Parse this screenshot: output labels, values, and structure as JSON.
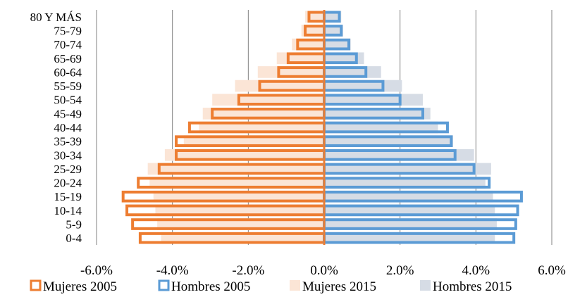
{
  "chart_data": {
    "type": "bar",
    "orientation": "horizontal",
    "layout": "population-pyramid",
    "categories": [
      "0-4",
      "5-9",
      "10-14",
      "15-19",
      "20-24",
      "25-29",
      "30-34",
      "35-39",
      "40-44",
      "45-49",
      "50-54",
      "55-59",
      "60-64",
      "65-69",
      "70-74",
      "75-79",
      "80 Y MÁS"
    ],
    "series": [
      {
        "name": "Mujeres 2005",
        "style": "outline",
        "color": "#ED7D31",
        "values": [
          -4.85,
          -5.05,
          -5.2,
          -5.3,
          -4.9,
          -4.35,
          -3.9,
          -3.9,
          -3.55,
          -2.95,
          -2.25,
          -1.7,
          -1.2,
          -0.95,
          -0.7,
          -0.5,
          -0.4
        ]
      },
      {
        "name": "Hombres 2005",
        "style": "outline",
        "color": "#5B9BD5",
        "values": [
          5.0,
          5.05,
          5.1,
          5.2,
          4.35,
          3.95,
          3.45,
          3.35,
          3.25,
          2.6,
          2.0,
          1.55,
          1.1,
          0.85,
          0.65,
          0.45,
          0.4
        ]
      },
      {
        "name": "Mujeres 2015",
        "style": "fill",
        "color": "#FBE5D6",
        "values": [
          -4.3,
          -4.4,
          -4.45,
          -4.5,
          -4.6,
          -4.65,
          -4.2,
          -3.7,
          -3.3,
          -3.2,
          -2.95,
          -2.35,
          -1.75,
          -1.25,
          -0.85,
          -0.6,
          -0.5
        ]
      },
      {
        "name": "Hombres 2015",
        "style": "fill",
        "color": "#D6DCE5",
        "values": [
          4.5,
          4.55,
          4.5,
          4.45,
          4.25,
          4.4,
          3.95,
          3.4,
          3.0,
          2.8,
          2.6,
          2.05,
          1.5,
          1.05,
          0.7,
          0.5,
          0.45
        ]
      }
    ],
    "xlim": [
      -6.0,
      6.0
    ],
    "xticks": [
      -6.0,
      -4.0,
      -2.0,
      0.0,
      2.0,
      4.0,
      6.0
    ],
    "xtick_labels": [
      "-6.0%",
      "-4.0%",
      "-2.0%",
      "0.0%",
      "2.0%",
      "4.0%",
      "6.0%"
    ],
    "grid": "vertical",
    "legend": "bottom",
    "axis_color": "#ED7D31",
    "grid_color": "#808080"
  }
}
